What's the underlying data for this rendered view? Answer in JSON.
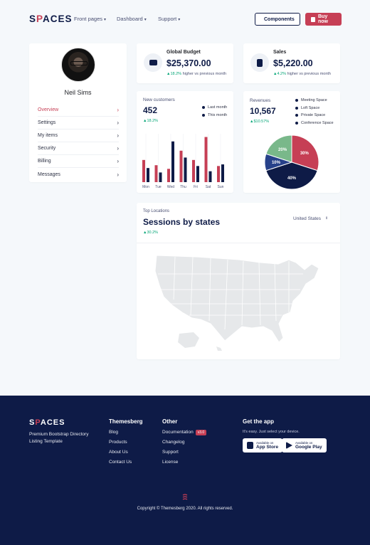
{
  "nav": {
    "logo_pre": "S",
    "logo_p": "P",
    "logo_post": "ACES",
    "menu": [
      "Front pages",
      "Dashboard",
      "Support"
    ],
    "components_label": "Components",
    "buy_label": "Buy now"
  },
  "profile": {
    "name": "Neil Sims",
    "menu": [
      "Overview",
      "Settings",
      "My items",
      "Security",
      "Billing",
      "Messages"
    ]
  },
  "global_budget": {
    "label": "Global Budget",
    "value": "$25,370.00",
    "change": "18.2%",
    "compare": "higher vs previous month"
  },
  "sales": {
    "label": "Sales",
    "value": "$5,220.00",
    "change": "4.2%",
    "compare": "higher vs previous month"
  },
  "new_customers": {
    "label": "New customers",
    "value": "452",
    "change": "18.2%",
    "legend": [
      "Last month",
      "This month"
    ]
  },
  "revenues": {
    "label": "Revenues",
    "value": "10,567",
    "change": "$10.57%",
    "legend": [
      "Meeting Space",
      "Loft Space",
      "Private Space",
      "Conference Space"
    ]
  },
  "sessions": {
    "kicker": "Top Locations",
    "title": "Sessions by states",
    "change": "30.2%",
    "select": "United States"
  },
  "chart_data": [
    {
      "type": "bar",
      "categories": [
        "Mon",
        "Tue",
        "Wed",
        "Thu",
        "Fri",
        "Sat",
        "Sun"
      ],
      "series": [
        {
          "name": "Last month",
          "values": [
            55,
            42,
            33,
            78,
            55,
            112,
            40
          ]
        },
        {
          "name": "This month",
          "values": [
            35,
            24,
            101,
            61,
            40,
            27,
            44
          ]
        }
      ],
      "ylim": [
        0,
        120
      ]
    },
    {
      "type": "pie",
      "labels": [
        "Meeting Space",
        "Loft Space",
        "Private Space",
        "Conference Space"
      ],
      "values": [
        30,
        40,
        10,
        20
      ],
      "value_labels": [
        "30%",
        "40%",
        "10%",
        "20%"
      ],
      "colors": [
        "#c63f55",
        "#0e1b47",
        "#27418a",
        "#79b88a"
      ]
    }
  ],
  "colors": {
    "primary": "#0e1b47",
    "accent": "#c63f55",
    "success": "#05a677"
  },
  "footer": {
    "logo_pre": "S",
    "logo_p": "P",
    "logo_post": "ACES",
    "tagline": "Premium Bootstrap Directory Listing Template",
    "themesberg": {
      "title": "Themesberg",
      "links": [
        "Blog",
        "Products",
        "About Us",
        "Contact Us"
      ]
    },
    "other": {
      "title": "Other",
      "links": [
        "Documentation",
        "Changelog",
        "Support",
        "License"
      ],
      "badge": "v3.0"
    },
    "app": {
      "title": "Get the app",
      "subtitle": "It's easy. Just select your device.",
      "apple_small": "Available on",
      "apple_big": "App Store",
      "google_small": "Available on",
      "google_big": "Google Play"
    },
    "copyright": "Copyright © Themesberg 2020. All rights reserved."
  }
}
